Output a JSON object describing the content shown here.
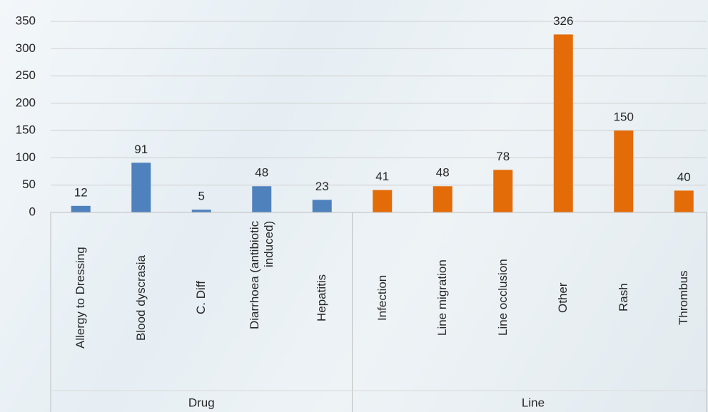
{
  "chart_data": {
    "type": "bar",
    "groups": [
      {
        "name": "Drug",
        "color": "#4f81bd",
        "categories": [
          "Allergy to Dressing",
          "Blood dyscrasia",
          "C. Diff",
          "Diarrhoea (antibiotic induced)",
          "Hepatitis"
        ],
        "values": [
          12,
          91,
          5,
          48,
          23
        ]
      },
      {
        "name": "Line",
        "color": "#e36c09",
        "categories": [
          "Infection",
          "Line migration",
          "Line occlusion",
          "Other",
          "Rash",
          "Thrombus"
        ],
        "values": [
          41,
          48,
          78,
          326,
          150,
          40
        ]
      }
    ],
    "ylim": [
      0,
      350
    ],
    "yticks": [
      0,
      50,
      100,
      150,
      200,
      250,
      300,
      350
    ],
    "grid": true
  }
}
